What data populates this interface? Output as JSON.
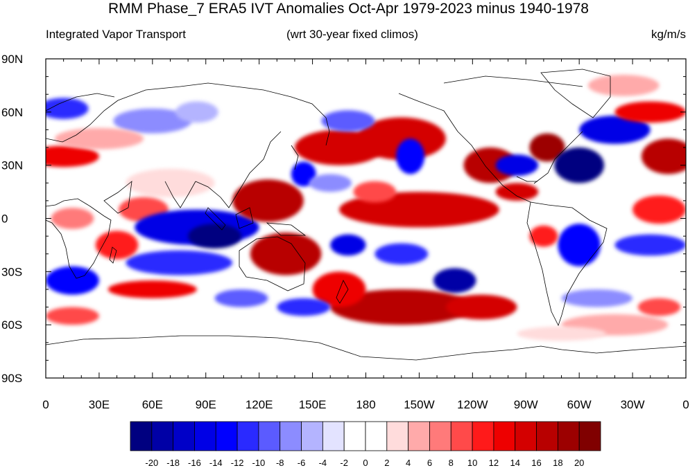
{
  "title": "RMM Phase_7 ERA5 IVT Anomalies Oct-Apr 1979-2023 minus 1940-1978",
  "subtitle_left": "Integrated Vapor Transport",
  "subtitle_center": "(wrt 30-year fixed climos)",
  "subtitle_right": "kg/m/s",
  "lat_labels": [
    "90N",
    "60N",
    "30N",
    "0",
    "30S",
    "60S",
    "90S"
  ],
  "lon_labels": [
    "0",
    "30E",
    "60E",
    "90E",
    "120E",
    "150E",
    "180",
    "150W",
    "120W",
    "90W",
    "60W",
    "30W",
    "0"
  ],
  "colorbar": {
    "labels": [
      "-20",
      "-18",
      "-16",
      "-14",
      "-12",
      "-10",
      "-8",
      "-6",
      "-4",
      "-2",
      "0",
      "2",
      "4",
      "6",
      "8",
      "10",
      "12",
      "14",
      "16",
      "18",
      "20"
    ],
    "colors": [
      "#000080",
      "#0000a6",
      "#0000c8",
      "#0000e6",
      "#0000ff",
      "#2a2aff",
      "#5b5bff",
      "#8c8cff",
      "#b4b4ff",
      "#e3e3ff",
      "#ffffff",
      "#ffffff",
      "#ffdcdc",
      "#ffaaaa",
      "#ff7a7a",
      "#ff4a4a",
      "#ff1a1a",
      "#ee0000",
      "#d40000",
      "#b80000",
      "#9c0000",
      "#800000"
    ]
  },
  "blobs": [
    {
      "lon": 10,
      "lat": 62,
      "rx": 14,
      "ry": 6,
      "c": "#2a2aff"
    },
    {
      "lon": 10,
      "lat": 35,
      "rx": 20,
      "ry": 6,
      "c": "#ee0000"
    },
    {
      "lon": 60,
      "lat": 55,
      "rx": 22,
      "ry": 7,
      "c": "#8c8cff"
    },
    {
      "lon": 85,
      "lat": 60,
      "rx": 12,
      "ry": 6,
      "c": "#b4b4ff"
    },
    {
      "lon": 30,
      "lat": 45,
      "rx": 25,
      "ry": 6,
      "c": "#ffaaaa"
    },
    {
      "lon": 70,
      "lat": 20,
      "rx": 25,
      "ry": 8,
      "c": "#ffdcdc"
    },
    {
      "lon": 55,
      "lat": 5,
      "rx": 14,
      "ry": 7,
      "c": "#ff4a4a"
    },
    {
      "lon": 15,
      "lat": 0,
      "rx": 12,
      "ry": 6,
      "c": "#ff7a7a"
    },
    {
      "lon": 85,
      "lat": -5,
      "rx": 35,
      "ry": 10,
      "c": "#0000e6"
    },
    {
      "lon": 95,
      "lat": -10,
      "rx": 15,
      "ry": 7,
      "c": "#000080"
    },
    {
      "lon": 75,
      "lat": -25,
      "rx": 30,
      "ry": 7,
      "c": "#2a2aff"
    },
    {
      "lon": 40,
      "lat": -15,
      "rx": 12,
      "ry": 8,
      "c": "#ff1a1a"
    },
    {
      "lon": 60,
      "lat": -40,
      "rx": 25,
      "ry": 5,
      "c": "#ee0000"
    },
    {
      "lon": 15,
      "lat": -35,
      "rx": 15,
      "ry": 8,
      "c": "#0000ff"
    },
    {
      "lon": 15,
      "lat": -55,
      "rx": 15,
      "ry": 5,
      "c": "#ff4a4a"
    },
    {
      "lon": 110,
      "lat": -45,
      "rx": 15,
      "ry": 5,
      "c": "#5b5bff"
    },
    {
      "lon": 125,
      "lat": 10,
      "rx": 20,
      "ry": 12,
      "c": "#b80000"
    },
    {
      "lon": 135,
      "lat": -20,
      "rx": 20,
      "ry": 12,
      "c": "#b80000"
    },
    {
      "lon": 165,
      "lat": 40,
      "rx": 25,
      "ry": 10,
      "c": "#d40000"
    },
    {
      "lon": 200,
      "lat": 45,
      "rx": 25,
      "ry": 12,
      "c": "#d40000"
    },
    {
      "lon": 205,
      "lat": 35,
      "rx": 8,
      "ry": 10,
      "c": "#0000ff"
    },
    {
      "lon": 170,
      "lat": 55,
      "rx": 15,
      "ry": 6,
      "c": "#5b5bff"
    },
    {
      "lon": 145,
      "lat": 25,
      "rx": 7,
      "ry": 7,
      "c": "#0000ff"
    },
    {
      "lon": 160,
      "lat": 20,
      "rx": 12,
      "ry": 5,
      "c": "#8c8cff"
    },
    {
      "lon": 210,
      "lat": 5,
      "rx": 45,
      "ry": 10,
      "c": "#d40000"
    },
    {
      "lon": 185,
      "lat": 15,
      "rx": 12,
      "ry": 6,
      "c": "#ff4a4a"
    },
    {
      "lon": 170,
      "lat": -15,
      "rx": 10,
      "ry": 6,
      "c": "#0000e6"
    },
    {
      "lon": 200,
      "lat": -20,
      "rx": 15,
      "ry": 6,
      "c": "#2a2aff"
    },
    {
      "lon": 230,
      "lat": -35,
      "rx": 12,
      "ry": 7,
      "c": "#0000a6"
    },
    {
      "lon": 200,
      "lat": -50,
      "rx": 40,
      "ry": 10,
      "c": "#b80000"
    },
    {
      "lon": 165,
      "lat": -40,
      "rx": 15,
      "ry": 10,
      "c": "#ee0000"
    },
    {
      "lon": 145,
      "lat": -50,
      "rx": 15,
      "ry": 5,
      "c": "#2a2aff"
    },
    {
      "lon": 245,
      "lat": -50,
      "rx": 20,
      "ry": 7,
      "c": "#d40000"
    },
    {
      "lon": 250,
      "lat": 30,
      "rx": 15,
      "ry": 10,
      "c": "#b80000"
    },
    {
      "lon": 265,
      "lat": 30,
      "rx": 12,
      "ry": 6,
      "c": "#0000e6"
    },
    {
      "lon": 282,
      "lat": 40,
      "rx": 10,
      "ry": 8,
      "c": "#9c0000"
    },
    {
      "lon": 300,
      "lat": 30,
      "rx": 14,
      "ry": 10,
      "c": "#000080"
    },
    {
      "lon": 265,
      "lat": 15,
      "rx": 12,
      "ry": 5,
      "c": "#d40000"
    },
    {
      "lon": 320,
      "lat": 50,
      "rx": 20,
      "ry": 8,
      "c": "#0000e6"
    },
    {
      "lon": 340,
      "lat": 60,
      "rx": 20,
      "ry": 6,
      "c": "#ee0000"
    },
    {
      "lon": 325,
      "lat": 75,
      "rx": 20,
      "ry": 6,
      "c": "#ffaaaa"
    },
    {
      "lon": 350,
      "lat": 35,
      "rx": 15,
      "ry": 10,
      "c": "#b80000"
    },
    {
      "lon": 345,
      "lat": 5,
      "rx": 15,
      "ry": 8,
      "c": "#ff1a1a"
    },
    {
      "lon": 340,
      "lat": -15,
      "rx": 20,
      "ry": 6,
      "c": "#2a2aff"
    },
    {
      "lon": 300,
      "lat": -15,
      "rx": 12,
      "ry": 12,
      "c": "#0000ff"
    },
    {
      "lon": 280,
      "lat": -10,
      "rx": 8,
      "ry": 6,
      "c": "#ff1a1a"
    },
    {
      "lon": 310,
      "lat": -45,
      "rx": 20,
      "ry": 5,
      "c": "#8c8cff"
    },
    {
      "lon": 320,
      "lat": -60,
      "rx": 30,
      "ry": 6,
      "c": "#ffaaaa"
    },
    {
      "lon": 290,
      "lat": -65,
      "rx": 25,
      "ry": 4,
      "c": "#ffdcdc"
    },
    {
      "lon": 345,
      "lat": -50,
      "rx": 12,
      "ry": 5,
      "c": "#ff4a4a"
    }
  ]
}
